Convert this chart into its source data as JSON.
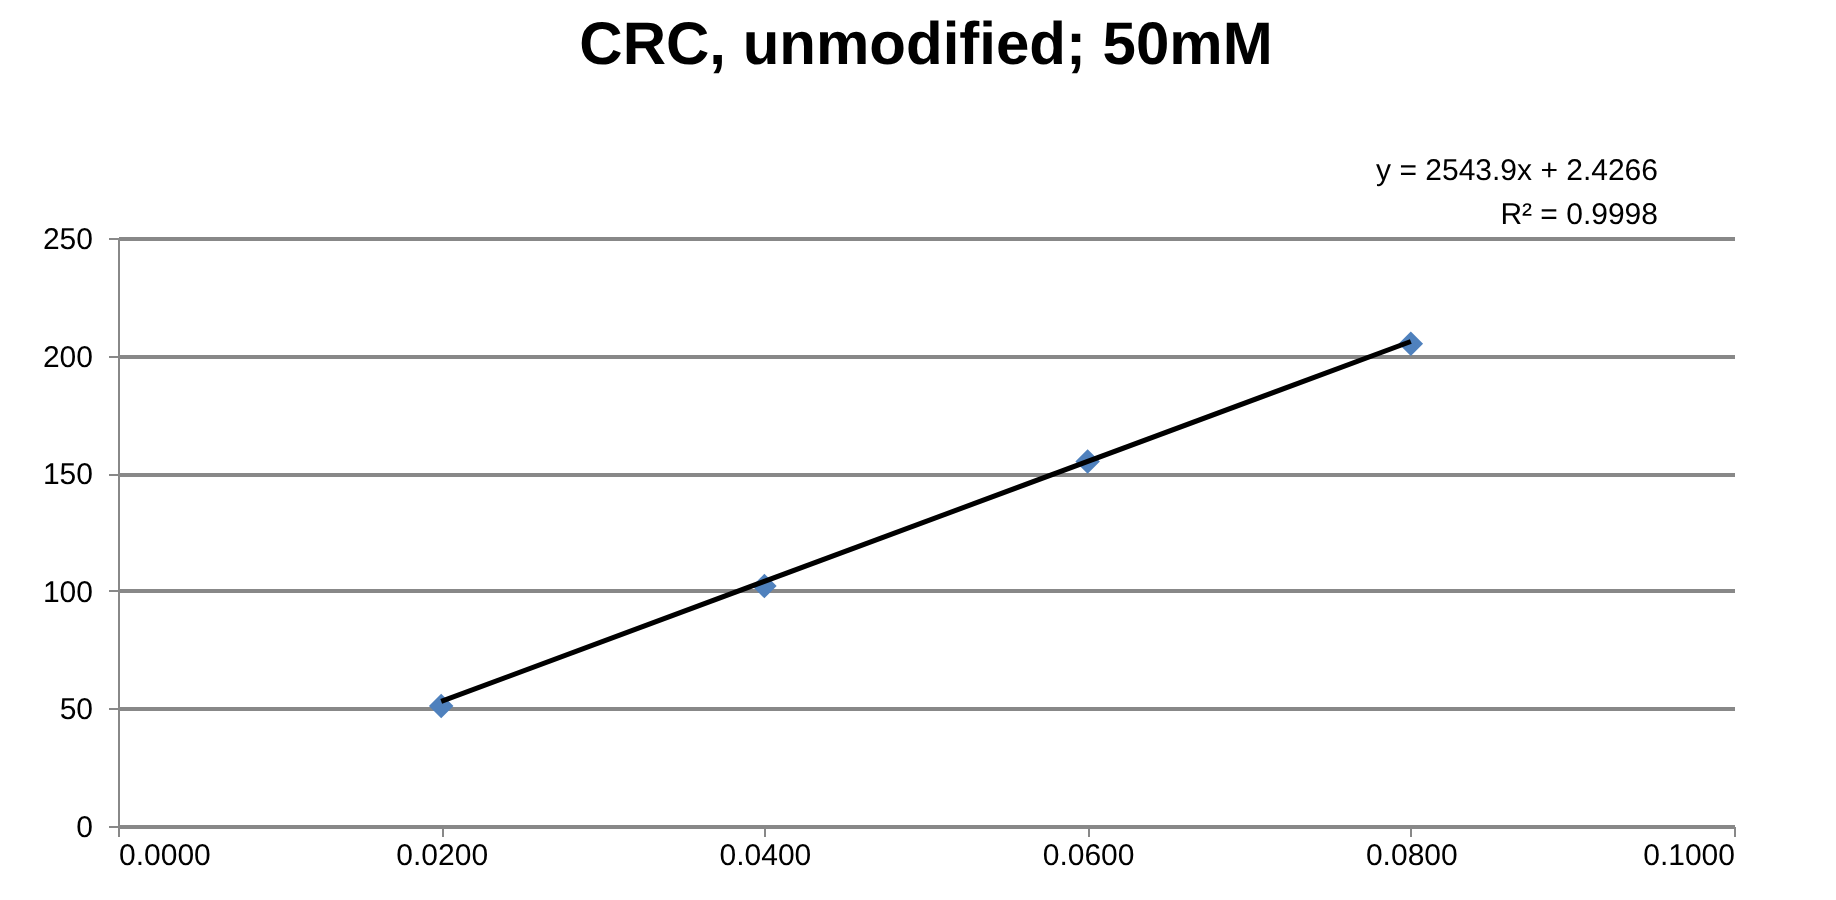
{
  "chart_data": {
    "type": "scatter",
    "title": "CRC, unmodified; 50mM",
    "series": [
      {
        "color": "#4f81bd",
        "marker": "diamond",
        "x": [
          0.02,
          0.04,
          0.06,
          0.08
        ],
        "values": [
          51,
          102,
          155,
          205
        ]
      },
      {
        "type": "line",
        "color": "#000000",
        "line_style": "solid",
        "marker": "none",
        "x": [
          0.02,
          0.08
        ],
        "values": [
          53,
          206
        ]
      }
    ],
    "annotations": [
      "y = 2543.9x + 2.4266",
      "R² = 0.9998"
    ],
    "xlim": [
      0,
      0.1
    ],
    "xticks": [
      {
        "value": 0,
        "label": "0.0000"
      },
      {
        "value": 0.02,
        "label": "0.0200"
      },
      {
        "value": 0.04,
        "label": "0.0400"
      },
      {
        "value": 0.06,
        "label": "0.0600"
      },
      {
        "value": 0.08,
        "label": "0.0800"
      },
      {
        "value": 0.1,
        "label": "0.1000"
      }
    ],
    "ylim": [
      0,
      250
    ],
    "yticks": [
      0,
      50,
      100,
      150,
      200,
      250
    ],
    "grid": "y"
  }
}
